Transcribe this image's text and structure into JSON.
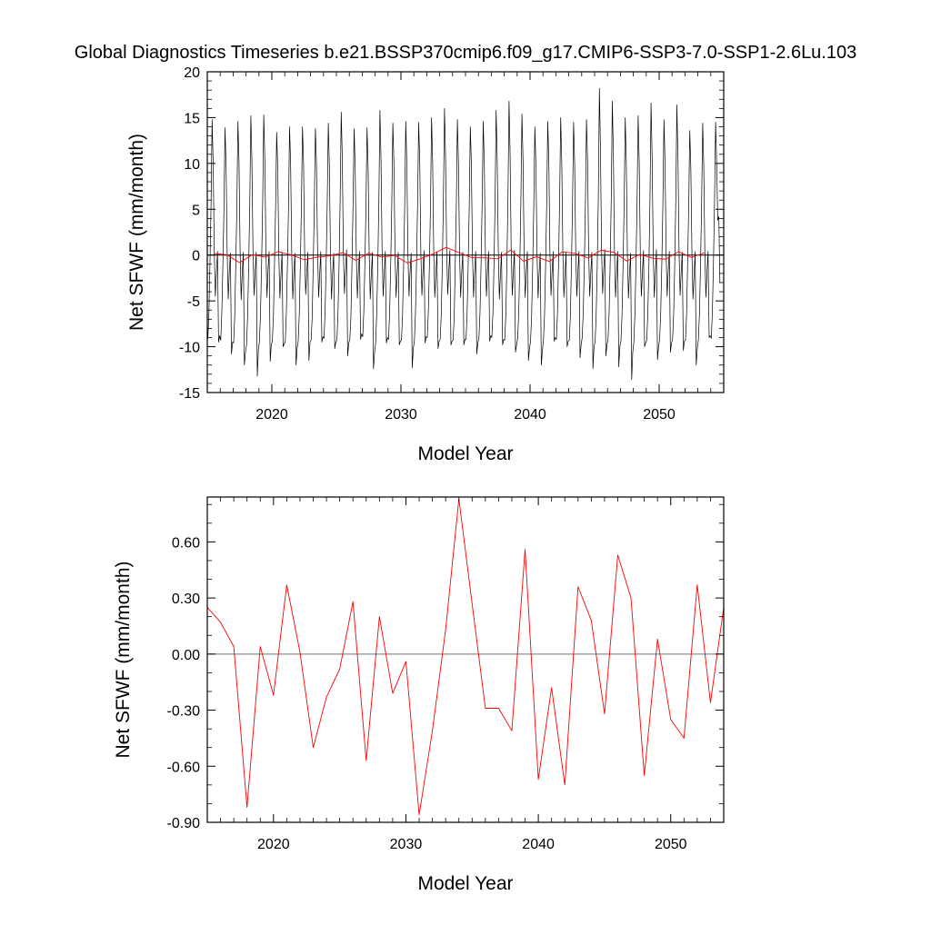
{
  "title": "Global Diagnostics Timeseries b.e21.BSSP370cmip6.f09_g17.CMIP6-SSP3-7.0-SSP1-2.6Lu.103",
  "colors": {
    "monthly": "#000000",
    "annual": "#ff0000",
    "zero_line": "#000000",
    "frame": "#000000"
  },
  "chart_data": [
    {
      "type": "line",
      "xlabel": "Model Year",
      "ylabel": "Net SFWF (mm/month)",
      "xlim": [
        2015,
        2055
      ],
      "ylim": [
        -15,
        20
      ],
      "x_ticks": [
        2020,
        2030,
        2040,
        2050
      ],
      "x_tick_labels": [
        "2020",
        "2030",
        "2040",
        "2050"
      ],
      "y_ticks": [
        -15,
        -10,
        -5,
        0,
        5,
        10,
        15,
        20
      ],
      "y_tick_labels": [
        "-15",
        "-10",
        "-5",
        "0",
        "5",
        "10",
        "15",
        "20"
      ],
      "reference_line": 0,
      "series": [
        {
          "role": "monthly",
          "color": "#000000",
          "x_start": 2015.04,
          "x_step": 0.08333,
          "values": [
            -9.2,
            -6.5,
            -1.0,
            5.5,
            14.8,
            10.0,
            0.5,
            -4.5,
            -2.0,
            0.4,
            -9.5,
            -8.8,
            -9.3,
            -6.4,
            -1.2,
            5.0,
            13.9,
            9.6,
            0.3,
            -4.8,
            -1.8,
            0.2,
            -10.8,
            -9.5,
            -9.6,
            -6.8,
            -1.1,
            5.2,
            14.6,
            10.2,
            0.6,
            -4.9,
            -1.9,
            0.3,
            -12.0,
            -10.6,
            -9.8,
            -6.7,
            -1.2,
            5.6,
            15.2,
            10.3,
            0.4,
            -4.4,
            -1.7,
            0.3,
            -13.2,
            -10.4,
            -9.4,
            -6.3,
            -1.0,
            5.8,
            15.3,
            10.4,
            0.6,
            -4.6,
            -1.6,
            0.4,
            -11.6,
            -9.8,
            -9.4,
            -6.6,
            -1.0,
            5.1,
            13.4,
            9.5,
            0.2,
            -4.7,
            -2.2,
            0.3,
            -10.0,
            -9.7,
            -9.5,
            -6.3,
            -1.1,
            5.0,
            14.0,
            9.8,
            0.3,
            -4.8,
            -1.9,
            0.2,
            -12.0,
            -10.2,
            -9.4,
            -6.6,
            -1.2,
            5.3,
            14.0,
            10.0,
            0.4,
            -4.3,
            -1.8,
            0.3,
            -11.5,
            -9.5,
            -9.3,
            -6.8,
            -1.1,
            5.4,
            13.8,
            10.0,
            0.6,
            -4.6,
            -2.1,
            0.4,
            -9.5,
            -8.9,
            -9.1,
            -6.3,
            -0.9,
            5.6,
            14.4,
            9.7,
            0.3,
            -4.8,
            -2.0,
            0.2,
            -10.2,
            -9.5,
            -9.3,
            -6.4,
            -1.0,
            5.9,
            15.6,
            10.6,
            0.5,
            -4.2,
            -1.7,
            0.6,
            -11.0,
            -9.6,
            -9.2,
            -6.8,
            -1.1,
            5.4,
            13.8,
            9.4,
            0.3,
            -4.7,
            -1.8,
            0.4,
            -9.2,
            -8.6,
            -8.9,
            -6.2,
            -1.0,
            5.2,
            13.9,
            9.6,
            0.3,
            -4.8,
            -2.0,
            0.3,
            -12.4,
            -10.6,
            -9.6,
            -6.4,
            -1.1,
            5.9,
            15.8,
            10.4,
            0.5,
            -4.5,
            -1.8,
            0.4,
            -9.6,
            -9.0,
            -9.2,
            -6.3,
            -1.0,
            5.5,
            14.4,
            10.0,
            0.4,
            -4.6,
            -2.1,
            0.3,
            -9.8,
            -9.4,
            -9.3,
            -6.7,
            -1.2,
            5.3,
            14.6,
            9.8,
            0.3,
            -4.5,
            -1.9,
            0.2,
            -12.3,
            -10.2,
            -9.4,
            -6.4,
            -1.0,
            5.6,
            14.5,
            10.2,
            0.4,
            -4.4,
            -1.7,
            0.5,
            -9.6,
            -8.9,
            -9.0,
            -6.2,
            -1.1,
            5.5,
            15.0,
            10.1,
            0.3,
            -4.6,
            -2.0,
            0.4,
            -10.2,
            -9.4,
            -9.2,
            -6.5,
            -1.0,
            6.0,
            16.0,
            10.7,
            0.6,
            -4.3,
            -1.8,
            0.5,
            -9.8,
            -9.4,
            -9.3,
            -6.8,
            -1.0,
            5.4,
            14.8,
            10.0,
            0.3,
            -4.6,
            -2.0,
            0.3,
            -9.8,
            -9.2,
            -9.2,
            -6.5,
            -1.1,
            5.2,
            14.0,
            9.8,
            0.2,
            -4.6,
            -1.9,
            0.4,
            -10.8,
            -9.6,
            -9.1,
            -6.3,
            -1.0,
            5.6,
            14.6,
            10.0,
            0.4,
            -4.5,
            -1.7,
            0.4,
            -9.4,
            -8.8,
            -9.0,
            -6.4,
            -1.2,
            5.7,
            15.8,
            10.5,
            0.6,
            -4.8,
            -2.1,
            0.3,
            -9.8,
            -9.2,
            -9.3,
            -6.6,
            -1.0,
            6.2,
            16.8,
            11.0,
            0.6,
            -4.4,
            -1.8,
            0.5,
            -10.6,
            -9.8,
            -9.1,
            -6.3,
            -1.1,
            5.8,
            15.4,
            10.4,
            0.5,
            -4.6,
            -2.0,
            0.4,
            -11.5,
            -10.2,
            -9.4,
            -6.6,
            -1.0,
            5.3,
            14.0,
            9.6,
            0.3,
            -4.7,
            -1.9,
            0.2,
            -12.0,
            -10.4,
            -9.3,
            -6.5,
            -1.1,
            5.6,
            14.6,
            10.0,
            0.4,
            -4.4,
            -1.8,
            0.4,
            -9.4,
            -9.0,
            -9.2,
            -6.4,
            -1.0,
            5.8,
            15.0,
            10.1,
            0.5,
            -4.6,
            -2.0,
            0.3,
            -10.0,
            -9.4,
            -9.3,
            -6.7,
            -1.2,
            5.4,
            14.5,
            9.9,
            0.3,
            -4.5,
            -1.7,
            0.4,
            -11.2,
            -9.8,
            -9.0,
            -6.2,
            -1.0,
            5.6,
            14.8,
            10.3,
            0.4,
            -4.5,
            -1.9,
            0.3,
            -12.4,
            -10.0,
            -9.5,
            -6.5,
            -1.1,
            6.3,
            18.2,
            11.4,
            0.7,
            -4.2,
            -1.6,
            0.6,
            -11.0,
            -9.8,
            -9.2,
            -6.4,
            -1.0,
            6.1,
            16.8,
            10.8,
            0.5,
            -4.6,
            -2.0,
            0.4,
            -12.2,
            -10.0,
            -9.4,
            -6.6,
            -1.1,
            5.6,
            15.0,
            10.0,
            0.3,
            -4.7,
            -1.9,
            0.2,
            -13.6,
            -10.6,
            -9.5,
            -6.5,
            -1.0,
            5.8,
            15.2,
            10.2,
            0.4,
            -4.5,
            -1.8,
            0.5,
            -10.0,
            -9.6,
            -9.3,
            -6.4,
            -1.2,
            6.1,
            16.6,
            10.6,
            0.6,
            -4.6,
            -2.0,
            0.6,
            -11.4,
            -10.0,
            -9.1,
            -6.3,
            -1.0,
            5.5,
            14.8,
            10.0,
            0.3,
            -4.5,
            -1.7,
            0.4,
            -10.6,
            -9.6,
            -9.2,
            -6.5,
            -1.1,
            5.9,
            16.4,
            10.8,
            0.6,
            -4.4,
            -1.9,
            0.3,
            -10.4,
            -9.4,
            -9.3,
            -6.6,
            -1.0,
            5.3,
            13.6,
            9.4,
            0.2,
            -4.8,
            -2.1,
            0.4,
            -12.0,
            -10.2,
            -9.2,
            -6.4,
            -1.1,
            5.6,
            14.4,
            9.8,
            0.3,
            -4.6,
            -1.8,
            0.4,
            -9.0,
            -8.8,
            -9.1,
            -6.2,
            -1.0,
            5.8,
            14.5,
            10.0,
            3.8,
            4.2,
            -3.0
          ]
        },
        {
          "role": "annual",
          "color": "#ff0000",
          "x": [
            2015.5,
            2016.5,
            2017.5,
            2018.5,
            2019.5,
            2020.5,
            2021.5,
            2022.5,
            2023.5,
            2024.5,
            2025.5,
            2026.5,
            2027.5,
            2028.5,
            2029.5,
            2030.5,
            2031.5,
            2032.5,
            2033.5,
            2034.5,
            2035.5,
            2036.5,
            2037.5,
            2038.5,
            2039.5,
            2040.5,
            2041.5,
            2042.5,
            2043.5,
            2044.5,
            2045.5,
            2046.5,
            2047.5,
            2048.5,
            2049.5,
            2050.5,
            2051.5,
            2052.5,
            2053.5
          ],
          "values": [
            0.17,
            0.04,
            -0.82,
            0.04,
            -0.22,
            0.37,
            0.01,
            -0.5,
            -0.23,
            -0.08,
            0.28,
            -0.57,
            0.2,
            -0.21,
            -0.04,
            -0.86,
            -0.41,
            0.13,
            0.83,
            0.27,
            -0.29,
            -0.29,
            -0.41,
            0.56,
            -0.67,
            -0.18,
            -0.7,
            0.36,
            0.18,
            -0.32,
            0.53,
            0.3,
            -0.65,
            0.08,
            -0.35,
            -0.45,
            0.37,
            -0.26,
            0.25
          ]
        }
      ]
    },
    {
      "type": "line",
      "xlabel": "Model Year",
      "ylabel": "Net SFWF (mm/month)",
      "xlim": [
        2015,
        2054
      ],
      "ylim": [
        -0.9,
        0.84
      ],
      "x_ticks": [
        2020,
        2030,
        2040,
        2050
      ],
      "x_tick_labels": [
        "2020",
        "2030",
        "2040",
        "2050"
      ],
      "y_ticks": [
        -0.9,
        -0.6,
        -0.3,
        0.0,
        0.3,
        0.6
      ],
      "y_tick_labels": [
        "-0.90",
        "-0.60",
        "-0.30",
        "0.00",
        "0.30",
        "0.60"
      ],
      "reference_line": 0,
      "series": [
        {
          "role": "annual",
          "color": "#ff0000",
          "x": [
            2015.0,
            2016.0,
            2017.0,
            2018.0,
            2019.0,
            2020.0,
            2021.0,
            2022.0,
            2023.0,
            2024.0,
            2025.0,
            2026.0,
            2027.0,
            2028.0,
            2029.0,
            2030.0,
            2031.0,
            2032.0,
            2033.0,
            2034.0,
            2035.0,
            2036.0,
            2037.0,
            2038.0,
            2039.0,
            2040.0,
            2041.0,
            2042.0,
            2043.0,
            2044.0,
            2045.0,
            2046.0,
            2047.0,
            2048.0,
            2049.0,
            2050.0,
            2051.0,
            2052.0,
            2053.0,
            2054.0
          ],
          "values": [
            0.25,
            0.17,
            0.04,
            -0.82,
            0.04,
            -0.22,
            0.37,
            0.01,
            -0.5,
            -0.23,
            -0.08,
            0.28,
            -0.57,
            0.2,
            -0.21,
            -0.04,
            -0.86,
            -0.41,
            0.13,
            0.83,
            0.27,
            -0.29,
            -0.29,
            -0.41,
            0.56,
            -0.67,
            -0.18,
            -0.7,
            0.36,
            0.18,
            -0.32,
            0.53,
            0.3,
            -0.65,
            0.08,
            -0.35,
            -0.45,
            0.37,
            -0.26,
            0.25
          ]
        }
      ]
    }
  ]
}
